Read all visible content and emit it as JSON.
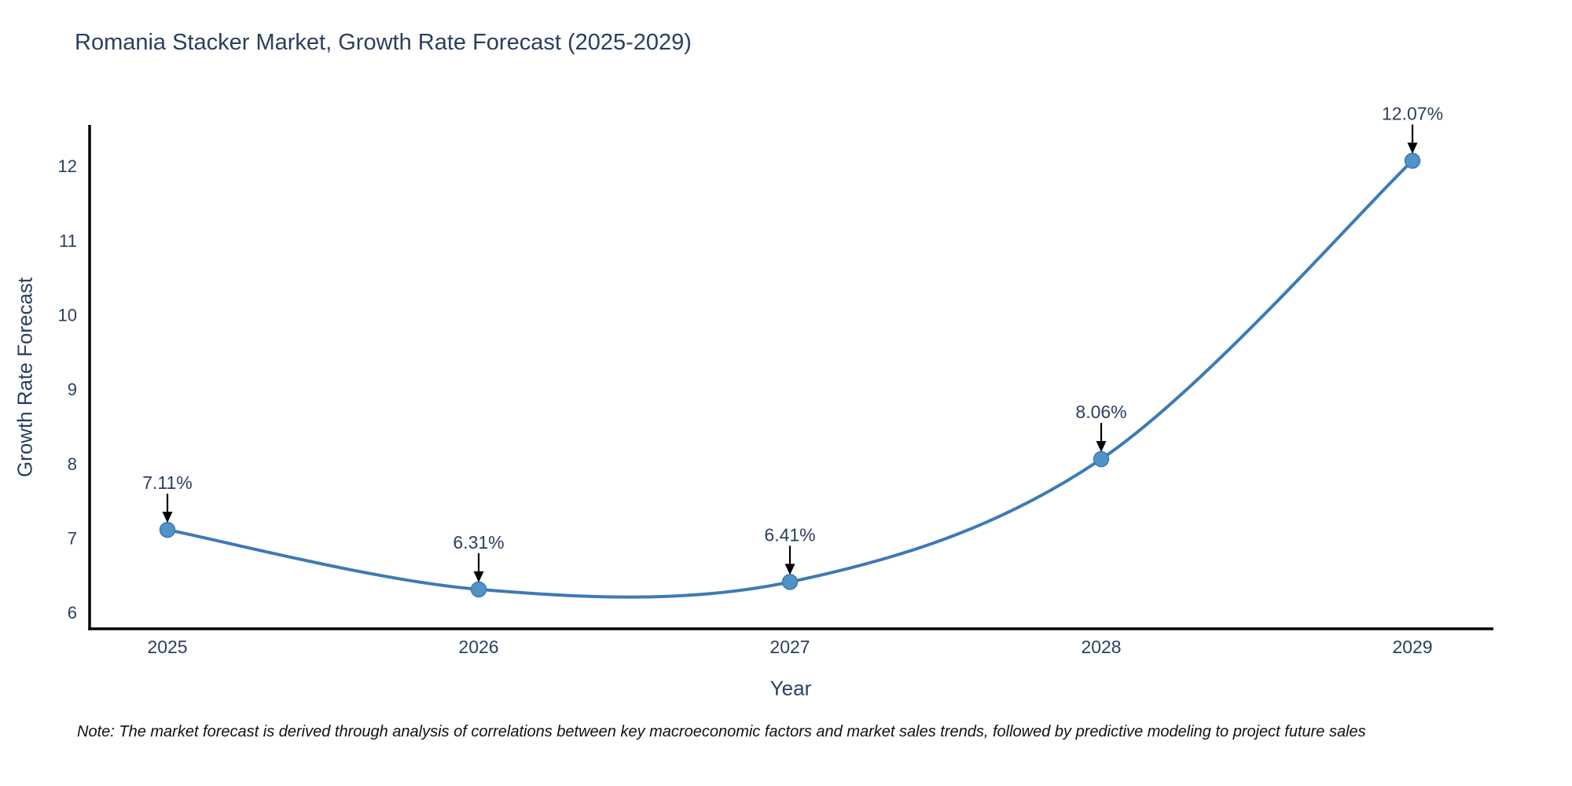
{
  "title": "Romania Stacker Market, Growth Rate Forecast (2025-2029)",
  "note": "Note: The market forecast is derived through analysis of correlations between key macroeconomic factors and market sales trends, followed by predictive modeling to project future sales",
  "chart_data": {
    "type": "line",
    "title": "Romania Stacker Market, Growth Rate Forecast (2025-2029)",
    "xlabel": "Year",
    "ylabel": "Growth Rate Forecast",
    "x": [
      2025,
      2026,
      2027,
      2028,
      2029
    ],
    "values": [
      7.11,
      6.31,
      6.41,
      8.06,
      12.07
    ],
    "point_labels": [
      "7.11%",
      "6.31%",
      "6.41%",
      "8.06%",
      "12.07%"
    ],
    "xticks": [
      "2025",
      "2026",
      "2027",
      "2028",
      "2029"
    ],
    "yticks": [
      "6",
      "7",
      "8",
      "9",
      "10",
      "11",
      "12"
    ],
    "ytick_values": [
      6,
      7,
      8,
      9,
      10,
      11,
      12
    ],
    "xlim": [
      2024.75,
      2029.26
    ],
    "ylim": [
      5.78,
      12.55
    ],
    "grid": false,
    "legend": "none",
    "line_shape": "spline",
    "colors": {
      "line": "#3d7ab5",
      "marker_fill": "#4f93c7",
      "marker_edge": "#3d7ab5",
      "axis_line": "#000000",
      "tick_text": "#2a3f5f",
      "annotation_text": "#2a3f5f",
      "annotation_arrow": "#000000"
    }
  }
}
